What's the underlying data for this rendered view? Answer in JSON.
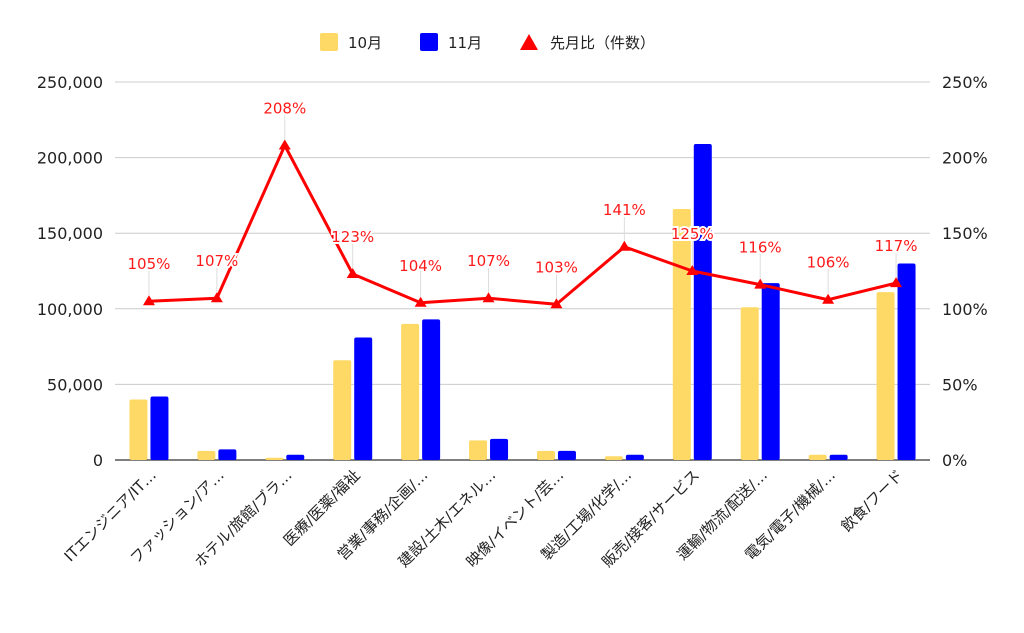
{
  "chart_data": {
    "type": "bar",
    "categories": [
      "ITエンジニア/IT…",
      "ファッション/ア…",
      "ホテル/旅館/ブラ…",
      "医療/医薬/福祉",
      "営業/事務/企画/…",
      "建設/土木/エネル…",
      "映像/イベント/芸…",
      "製造/工場/化学/…",
      "販売/接客/サービス",
      "運輸/物流/配送/…",
      "電気/電子/機械/…",
      "飲食/フード"
    ],
    "series": [
      {
        "name": "10月",
        "type": "bar",
        "axis": "left",
        "color": "#ffd966",
        "values": [
          40000,
          6000,
          1500,
          66000,
          90000,
          13000,
          6000,
          2500,
          166000,
          101000,
          3500,
          111000
        ]
      },
      {
        "name": "11月",
        "type": "bar",
        "axis": "left",
        "color": "#0000ff",
        "values": [
          42000,
          7000,
          3500,
          81000,
          93000,
          14000,
          6000,
          3500,
          209000,
          117000,
          3500,
          130000
        ]
      },
      {
        "name": "先月比（件数）",
        "type": "line",
        "axis": "right",
        "color": "#ff0000",
        "marker": "triangle",
        "values": [
          105,
          107,
          208,
          123,
          104,
          107,
          103,
          141,
          125,
          116,
          106,
          117
        ],
        "labels": [
          "105%",
          "107%",
          "208%",
          "123%",
          "104%",
          "107%",
          "103%",
          "141%",
          "125%",
          "116%",
          "106%",
          "117%"
        ]
      }
    ],
    "y_left": {
      "ylim": [
        0,
        250000
      ],
      "ticks": [
        "0",
        "50,000",
        "100,000",
        "150,000",
        "200,000",
        "250,000"
      ]
    },
    "y_right": {
      "ylim": [
        0,
        250
      ],
      "ticks": [
        "0%",
        "50%",
        "100%",
        "150%",
        "200%",
        "250%"
      ]
    },
    "title": "",
    "xlabel": "",
    "ylabel": "",
    "grid": true,
    "legend_position": "top-center"
  }
}
